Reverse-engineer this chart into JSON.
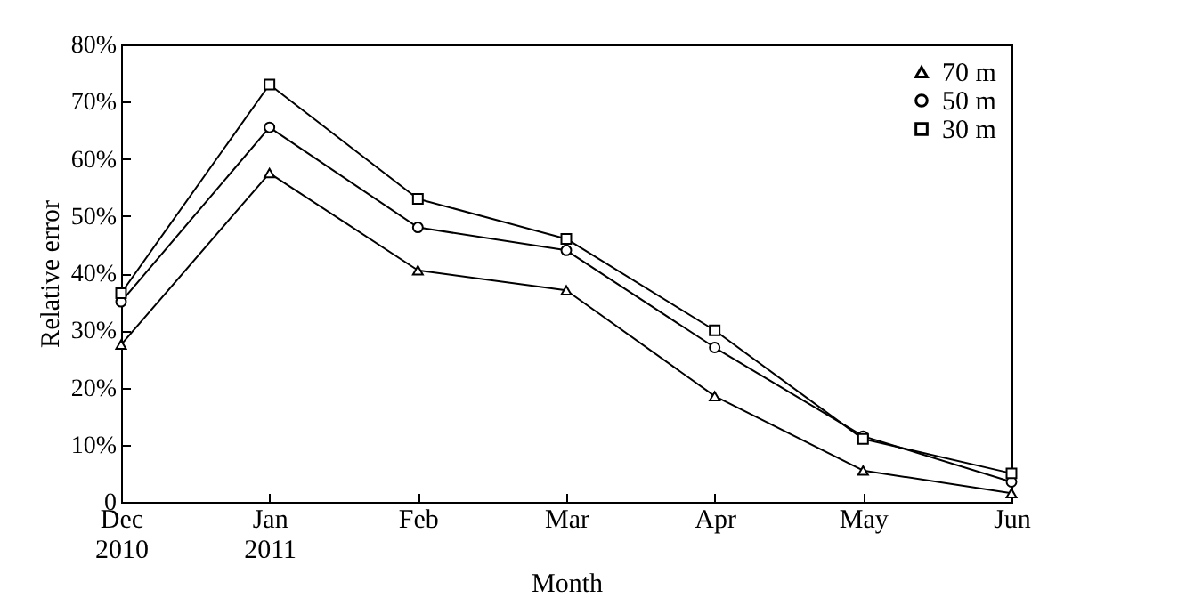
{
  "chart_data": {
    "type": "line",
    "xlabel": "Month",
    "ylabel": "Relative error",
    "categories": [
      "Dec\n2010",
      "Jan\n2011",
      "Feb",
      "Mar",
      "Apr",
      "May",
      "Jun"
    ],
    "series": [
      {
        "name": "70 m",
        "color": "#000000",
        "marker": "triangle",
        "values": [
          27.5,
          57.5,
          40.5,
          37,
          18.5,
          5.5,
          1.5
        ]
      },
      {
        "name": "50 m",
        "color": "#000000",
        "marker": "circle",
        "values": [
          35,
          65.5,
          48,
          44,
          27,
          11.5,
          3.5
        ]
      },
      {
        "name": "30 m",
        "color": "#000000",
        "marker": "square",
        "values": [
          36.5,
          73,
          53,
          46,
          30,
          11,
          5
        ]
      }
    ],
    "ylim": [
      0,
      80
    ],
    "yticks": [
      0,
      {
        "value": 10,
        "label": "10%"
      },
      {
        "value": 20,
        "label": "20%"
      },
      {
        "value": 30,
        "label": "30%"
      },
      {
        "value": 40,
        "label": "40%"
      },
      {
        "value": 50,
        "label": "50%"
      },
      {
        "value": 60,
        "label": "60%"
      },
      {
        "value": 70,
        "label": "70%"
      },
      {
        "value": 80,
        "label": "80%"
      }
    ],
    "grid": false,
    "legend": "top right",
    "line_style": "solid"
  }
}
